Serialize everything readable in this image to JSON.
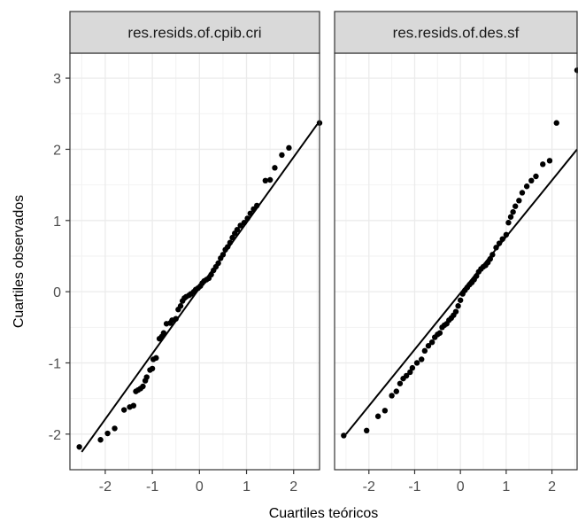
{
  "chart_data": {
    "type": "scatter",
    "subtype": "qq-plot-faceted",
    "xlabel": "Cuartiles teóricos",
    "ylabel": "Cuartiles observados",
    "xlim": [
      -2.75,
      2.55
    ],
    "ylim": [
      -2.5,
      3.35
    ],
    "x_ticks": [
      -2,
      -1,
      0,
      1,
      2
    ],
    "x_tick_labels": [
      "-2",
      "-1",
      "0",
      "1",
      "2"
    ],
    "y_ticks": [
      -2,
      -1,
      0,
      1,
      2,
      3
    ],
    "y_tick_labels": [
      "-2",
      "-1",
      "0",
      "1",
      "2",
      "3"
    ],
    "grid": true,
    "colors": {
      "points": "#000000",
      "line": "#000000",
      "grid": "#ebebeb",
      "strip_bg": "#d9d9d9",
      "border": "#333333"
    },
    "facets": [
      {
        "title": "res.resids.of.cpib.cri",
        "reference_line": {
          "x": [
            -2.5,
            2.5
          ],
          "y": [
            -2.25,
            2.35
          ]
        },
        "points": [
          [
            -2.55,
            -2.18
          ],
          [
            -2.1,
            -2.08
          ],
          [
            -1.95,
            -1.99
          ],
          [
            -1.8,
            -1.92
          ],
          [
            -1.6,
            -1.66
          ],
          [
            -1.48,
            -1.62
          ],
          [
            -1.4,
            -1.6
          ],
          [
            -1.35,
            -1.4
          ],
          [
            -1.3,
            -1.38
          ],
          [
            -1.25,
            -1.36
          ],
          [
            -1.2,
            -1.33
          ],
          [
            -1.15,
            -1.25
          ],
          [
            -1.12,
            -1.2
          ],
          [
            -1.05,
            -1.1
          ],
          [
            -1.0,
            -1.08
          ],
          [
            -0.98,
            -0.95
          ],
          [
            -0.92,
            -0.93
          ],
          [
            -0.85,
            -0.66
          ],
          [
            -0.8,
            -0.63
          ],
          [
            -0.76,
            -0.58
          ],
          [
            -0.7,
            -0.45
          ],
          [
            -0.62,
            -0.44
          ],
          [
            -0.58,
            -0.4
          ],
          [
            -0.5,
            -0.38
          ],
          [
            -0.45,
            -0.25
          ],
          [
            -0.4,
            -0.2
          ],
          [
            -0.36,
            -0.13
          ],
          [
            -0.32,
            -0.09
          ],
          [
            -0.28,
            -0.07
          ],
          [
            -0.22,
            -0.05
          ],
          [
            -0.18,
            -0.03
          ],
          [
            -0.12,
            0.0
          ],
          [
            -0.08,
            0.03
          ],
          [
            -0.03,
            0.05
          ],
          [
            0.02,
            0.08
          ],
          [
            0.06,
            0.12
          ],
          [
            0.1,
            0.15
          ],
          [
            0.15,
            0.17
          ],
          [
            0.2,
            0.19
          ],
          [
            0.25,
            0.24
          ],
          [
            0.3,
            0.3
          ],
          [
            0.35,
            0.35
          ],
          [
            0.4,
            0.4
          ],
          [
            0.45,
            0.47
          ],
          [
            0.5,
            0.52
          ],
          [
            0.55,
            0.59
          ],
          [
            0.6,
            0.63
          ],
          [
            0.65,
            0.69
          ],
          [
            0.7,
            0.76
          ],
          [
            0.75,
            0.82
          ],
          [
            0.8,
            0.87
          ],
          [
            0.87,
            0.93
          ],
          [
            0.95,
            0.97
          ],
          [
            1.02,
            1.03
          ],
          [
            1.08,
            1.1
          ],
          [
            1.15,
            1.16
          ],
          [
            1.22,
            1.21
          ],
          [
            1.4,
            1.56
          ],
          [
            1.5,
            1.57
          ],
          [
            1.6,
            1.74
          ],
          [
            1.75,
            1.92
          ],
          [
            1.9,
            2.02
          ],
          [
            2.55,
            2.37
          ]
        ]
      },
      {
        "title": "res.resids.of.des.sf",
        "reference_line": {
          "x": [
            -2.5,
            2.55
          ],
          "y": [
            -2.0,
            2.0
          ]
        },
        "points": [
          [
            -2.55,
            -2.02
          ],
          [
            -2.05,
            -1.95
          ],
          [
            -1.8,
            -1.75
          ],
          [
            -1.65,
            -1.67
          ],
          [
            -1.5,
            -1.46
          ],
          [
            -1.4,
            -1.4
          ],
          [
            -1.32,
            -1.29
          ],
          [
            -1.25,
            -1.22
          ],
          [
            -1.18,
            -1.18
          ],
          [
            -1.1,
            -1.13
          ],
          [
            -1.05,
            -1.07
          ],
          [
            -0.95,
            -1.0
          ],
          [
            -0.85,
            -0.95
          ],
          [
            -0.78,
            -0.83
          ],
          [
            -0.7,
            -0.76
          ],
          [
            -0.62,
            -0.71
          ],
          [
            -0.56,
            -0.64
          ],
          [
            -0.5,
            -0.6
          ],
          [
            -0.45,
            -0.58
          ],
          [
            -0.4,
            -0.5
          ],
          [
            -0.35,
            -0.47
          ],
          [
            -0.3,
            -0.45
          ],
          [
            -0.25,
            -0.4
          ],
          [
            -0.2,
            -0.37
          ],
          [
            -0.15,
            -0.33
          ],
          [
            -0.1,
            -0.28
          ],
          [
            -0.05,
            -0.2
          ],
          [
            0.0,
            -0.12
          ],
          [
            0.05,
            -0.03
          ],
          [
            0.1,
            0.02
          ],
          [
            0.15,
            0.06
          ],
          [
            0.2,
            0.1
          ],
          [
            0.25,
            0.13
          ],
          [
            0.3,
            0.17
          ],
          [
            0.35,
            0.22
          ],
          [
            0.4,
            0.28
          ],
          [
            0.45,
            0.32
          ],
          [
            0.5,
            0.35
          ],
          [
            0.55,
            0.37
          ],
          [
            0.6,
            0.41
          ],
          [
            0.65,
            0.46
          ],
          [
            0.7,
            0.52
          ],
          [
            0.78,
            0.62
          ],
          [
            0.85,
            0.68
          ],
          [
            0.92,
            0.74
          ],
          [
            1.0,
            0.8
          ],
          [
            1.05,
            0.97
          ],
          [
            1.1,
            1.05
          ],
          [
            1.15,
            1.12
          ],
          [
            1.2,
            1.2
          ],
          [
            1.28,
            1.28
          ],
          [
            1.35,
            1.39
          ],
          [
            1.45,
            1.48
          ],
          [
            1.55,
            1.56
          ],
          [
            1.65,
            1.62
          ],
          [
            1.8,
            1.79
          ],
          [
            1.95,
            1.84
          ],
          [
            2.1,
            2.37
          ],
          [
            2.55,
            3.11
          ]
        ]
      }
    ]
  }
}
